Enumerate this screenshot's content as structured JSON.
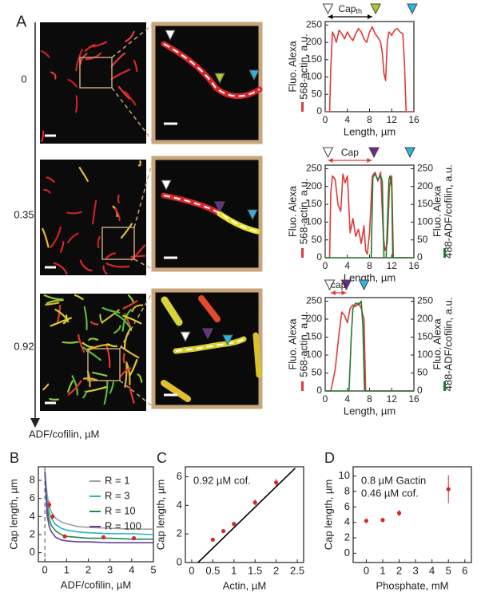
{
  "figure": {
    "panel_label": "A",
    "concentrations": [
      0,
      0.35,
      0.92
    ],
    "concentration_label": "ADF/cofilin, µM"
  },
  "chart_data": [
    {
      "type": "line",
      "x_label": "Length, µm",
      "y_label": [
        "Fluo. Alexa",
        "568-actin, a.u."
      ],
      "xlim": [
        0,
        16
      ],
      "xticks": [
        0,
        4,
        8,
        12,
        16
      ],
      "ylim": [
        0,
        260
      ],
      "yticks": [
        0,
        50,
        100,
        150,
        200,
        250
      ],
      "series": [
        {
          "color": "#e03a3a",
          "x": [
            0,
            0.8,
            1,
            1.3,
            1.6,
            2,
            2.5,
            3,
            3.5,
            4,
            4.5,
            5,
            5.5,
            6,
            6.5,
            7,
            7.5,
            8,
            8.5,
            9,
            9.5,
            10,
            10.3,
            10.6,
            10.9,
            11.2,
            11.5,
            12,
            12.5,
            13,
            13.5,
            14,
            14.3,
            14.6,
            16
          ],
          "values": [
            0,
            0,
            120,
            230,
            220,
            200,
            235,
            225,
            210,
            230,
            215,
            205,
            225,
            240,
            230,
            210,
            200,
            230,
            245,
            225,
            215,
            200,
            170,
            110,
            90,
            200,
            230,
            220,
            235,
            240,
            230,
            225,
            140,
            0,
            0
          ]
        }
      ],
      "markers": [
        {
          "x": 0.5,
          "color": "#ffffff"
        },
        {
          "x": 9.1,
          "color": "#b5c72a"
        },
        {
          "x": 15.7,
          "color": "#2bb5e0"
        }
      ],
      "annotation": {
        "text": "Cap",
        "subscript": "th",
        "span": [
          0.5,
          8.5
        ],
        "color": "#000000"
      }
    },
    {
      "type": "line",
      "x_label": "Length, µm",
      "y_label": [
        "Fluo. Alexa",
        "568-actin, a.u."
      ],
      "y2_label": [
        "Fluo. Alexa",
        "488-ADF/cofilin, a.u."
      ],
      "xlim": [
        0,
        16
      ],
      "xticks": [
        0,
        4,
        8,
        12,
        16
      ],
      "ylim": [
        0,
        260
      ],
      "yticks": [
        0,
        50,
        100,
        150,
        200,
        250
      ],
      "y2lim": [
        0,
        260
      ],
      "y2ticks": [
        0,
        50,
        100,
        150,
        200,
        250
      ],
      "series": [
        {
          "color": "#e03a3a",
          "x": [
            0,
            0.8,
            1,
            1.3,
            1.8,
            2.3,
            2.8,
            3.2,
            3.6,
            4,
            4.5,
            5,
            5.5,
            6,
            6.5,
            7,
            7.3,
            7.6,
            8,
            8.5,
            9,
            9.5,
            10,
            10.5,
            10.8,
            11.2,
            11.6,
            12,
            12.3,
            16
          ],
          "values": [
            0,
            0,
            180,
            230,
            220,
            150,
            130,
            235,
            210,
            230,
            70,
            110,
            60,
            80,
            40,
            90,
            20,
            10,
            70,
            230,
            240,
            215,
            240,
            60,
            20,
            40,
            200,
            230,
            0,
            0
          ]
        },
        {
          "color": "#1e7a2e",
          "axis": "y2",
          "x": [
            0,
            8.3,
            8.6,
            9,
            9.5,
            10,
            10.3,
            10.6,
            11,
            11.5,
            11.7,
            12,
            12.2,
            16
          ],
          "values": [
            0,
            0,
            225,
            235,
            220,
            230,
            215,
            0,
            0,
            220,
            230,
            200,
            0,
            0
          ]
        }
      ],
      "markers": [
        {
          "x": 0.5,
          "color": "#ffffff"
        },
        {
          "x": 8.8,
          "color": "#6a2c91"
        },
        {
          "x": 15.3,
          "color": "#2bb5e0"
        }
      ],
      "annotation": {
        "text": "Cap",
        "span": [
          0.5,
          8.4
        ],
        "color": "#e03a3a"
      }
    },
    {
      "type": "line",
      "x_label": "Length, µm",
      "y_label": [
        "Fluo. Alexa",
        "568-actin, a.u."
      ],
      "y2_label": [
        "Fluo. Alexa",
        "488-ADF/cofilin, a.u."
      ],
      "xlim": [
        0,
        16
      ],
      "xticks": [
        0,
        4,
        8,
        12,
        16
      ],
      "ylim": [
        0,
        260
      ],
      "yticks": [
        0,
        50,
        100,
        150,
        200,
        250
      ],
      "y2lim": [
        0,
        260
      ],
      "y2ticks": [
        0,
        50,
        100,
        150,
        200,
        250
      ],
      "series": [
        {
          "color": "#e03a3a",
          "x": [
            0,
            1,
            1.3,
            1.8,
            2.5,
            3,
            3.5,
            4,
            4.5,
            5,
            5.5,
            6,
            6.5,
            7,
            7.3,
            16
          ],
          "values": [
            0,
            0,
            20,
            60,
            160,
            220,
            210,
            190,
            230,
            240,
            235,
            245,
            230,
            200,
            0,
            0
          ]
        },
        {
          "color": "#1e7a2e",
          "axis": "y2",
          "x": [
            0,
            4.3,
            4.7,
            5,
            5.5,
            6,
            6.5,
            6.8,
            7.1,
            16
          ],
          "values": [
            0,
            0,
            150,
            230,
            245,
            240,
            250,
            180,
            0,
            0
          ]
        }
      ],
      "markers": [
        {
          "x": 0.8,
          "color": "#ffffff"
        },
        {
          "x": 3.8,
          "color": "#6a2c91"
        },
        {
          "x": 7.0,
          "color": "#2bb5e0"
        }
      ],
      "annotation": {
        "text": "cap",
        "span": [
          1,
          3.8
        ],
        "color": "#e03a3a"
      }
    },
    {
      "type": "line",
      "panel_label": "B",
      "x_label": "ADF/cofilin, µM",
      "y_label": "Cap length, µm",
      "xlim": [
        -0.3,
        5
      ],
      "xticks": [
        0,
        1,
        2,
        3,
        4,
        5
      ],
      "ylim": [
        -1,
        9.5
      ],
      "yticks": [
        0,
        2,
        4,
        6,
        8
      ],
      "vline": 0,
      "legend": "upper right",
      "series": [
        {
          "name": "R = 1",
          "color": "#a0a0a0",
          "x": [
            0,
            0.1,
            0.2,
            0.3,
            0.5,
            0.75,
            1,
            1.5,
            2,
            3,
            4,
            5
          ],
          "values": [
            9.0,
            6.5,
            5.2,
            4.5,
            3.8,
            3.4,
            3.2,
            2.9,
            2.8,
            2.7,
            2.6,
            2.6
          ]
        },
        {
          "name": "R = 3",
          "color": "#22b5c8",
          "x": [
            0,
            0.1,
            0.2,
            0.3,
            0.5,
            0.75,
            1,
            1.5,
            2,
            3,
            4,
            5
          ],
          "values": [
            9.0,
            5.8,
            4.5,
            3.8,
            3.1,
            2.7,
            2.5,
            2.3,
            2.2,
            2.1,
            2.1,
            2.0
          ]
        },
        {
          "name": "R = 10",
          "color": "#1e8a4a",
          "x": [
            0,
            0.1,
            0.2,
            0.3,
            0.5,
            0.75,
            1,
            1.5,
            2,
            3,
            4,
            5
          ],
          "values": [
            9.0,
            5.0,
            3.7,
            3.0,
            2.4,
            2.0,
            1.8,
            1.7,
            1.6,
            1.6,
            1.5,
            1.5
          ]
        },
        {
          "name": "R = 100",
          "color": "#6a3d9a",
          "x": [
            0,
            0.1,
            0.2,
            0.3,
            0.5,
            0.75,
            1,
            1.5,
            2,
            3,
            4,
            5
          ],
          "values": [
            9.0,
            4.2,
            2.9,
            2.3,
            1.7,
            1.4,
            1.3,
            1.2,
            1.2,
            1.1,
            1.1,
            1.1
          ]
        }
      ],
      "points": {
        "color": "#d62728",
        "x": [
          0.2,
          0.35,
          0.92,
          2.7,
          4.1
        ],
        "values": [
          5.3,
          4.0,
          1.8,
          1.7,
          1.6
        ],
        "errors": [
          0.4,
          0.3,
          0.15,
          0.1,
          0.1
        ]
      }
    },
    {
      "type": "line",
      "panel_label": "C",
      "x_label": "Actin, µM",
      "y_label": "Cap length, µm",
      "xlim": [
        -0.15,
        2.65
      ],
      "xticks": [
        0,
        0.5,
        1,
        1.5,
        2,
        2.5
      ],
      "ylim": [
        0,
        6.7
      ],
      "yticks": [
        0,
        2,
        4,
        6
      ],
      "annotations": [
        "0.92 µM cof."
      ],
      "fit": {
        "color": "#000000",
        "x": [
          0.15,
          2.45
        ],
        "values": [
          0,
          6.6
        ]
      },
      "points": {
        "color": "#d62728",
        "x": [
          0.5,
          0.75,
          1,
          1.5,
          2
        ],
        "values": [
          1.6,
          2.2,
          2.7,
          4.2,
          5.6
        ],
        "errors": [
          0.1,
          0.1,
          0.15,
          0.2,
          0.25
        ]
      }
    },
    {
      "type": "line",
      "panel_label": "D",
      "x_label": "Phosphate, mM",
      "y_label": "Cap length, µm",
      "xlim": [
        -0.8,
        6.4
      ],
      "xticks": [
        0,
        1,
        2,
        3,
        4,
        5,
        6
      ],
      "ylim": [
        -1.2,
        11.2
      ],
      "yticks": [
        0,
        2,
        4,
        6,
        8,
        10
      ],
      "annotations": [
        "0.8 µM Gactin",
        "0.46 µM cof."
      ],
      "points": {
        "color": "#d62728",
        "x": [
          0,
          1,
          2,
          5
        ],
        "values": [
          4.2,
          4.3,
          5.2,
          8.3
        ],
        "errors": [
          0.25,
          0.3,
          0.4,
          1.8
        ]
      }
    }
  ]
}
